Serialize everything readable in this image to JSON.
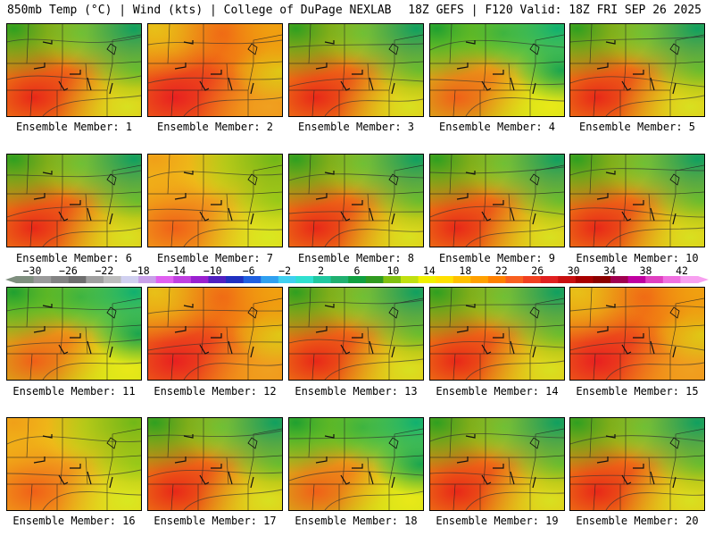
{
  "header": {
    "left": "850mb Temp (°C) | Wind (kts) | College of DuPage NEXLAB",
    "right": "18Z GEFS | F120 Valid: 18Z FRI SEP 26 2025"
  },
  "members": [
    {
      "label": "Ensemble Member: 1",
      "style": "warm"
    },
    {
      "label": "Ensemble Member: 2",
      "style": "hot"
    },
    {
      "label": "Ensemble Member: 3",
      "style": "warm"
    },
    {
      "label": "Ensemble Member: 4",
      "style": "cool"
    },
    {
      "label": "Ensemble Member: 5",
      "style": "warm"
    },
    {
      "label": "Ensemble Member: 6",
      "style": "warm"
    },
    {
      "label": "Ensemble Member: 7",
      "style": "mild"
    },
    {
      "label": "Ensemble Member: 8",
      "style": "warm"
    },
    {
      "label": "Ensemble Member: 9",
      "style": "warm"
    },
    {
      "label": "Ensemble Member: 10",
      "style": "warm"
    },
    {
      "label": "Ensemble Member: 11",
      "style": "cool"
    },
    {
      "label": "Ensemble Member: 12",
      "style": "hot"
    },
    {
      "label": "Ensemble Member: 13",
      "style": "warm"
    },
    {
      "label": "Ensemble Member: 14",
      "style": "warm"
    },
    {
      "label": "Ensemble Member: 15",
      "style": "hot"
    },
    {
      "label": "Ensemble Member: 16",
      "style": "mild"
    },
    {
      "label": "Ensemble Member: 17",
      "style": "warm"
    },
    {
      "label": "Ensemble Member: 18",
      "style": "cool"
    },
    {
      "label": "Ensemble Member: 19",
      "style": "warm"
    },
    {
      "label": "Ensemble Member: 20",
      "style": "warm"
    }
  ],
  "colorbar": {
    "labels": [
      "−30",
      "−26",
      "−22",
      "−18",
      "−14",
      "−10",
      "−6",
      "−2",
      "2",
      "6",
      "10",
      "14",
      "18",
      "22",
      "26",
      "30",
      "34",
      "38",
      "42"
    ],
    "colors": [
      "#7f8f7f",
      "#9a9a9a",
      "#828282",
      "#6e6e6e",
      "#9f9f9f",
      "#bcbcbc",
      "#d0d0f0",
      "#c8a0e8",
      "#e060f0",
      "#c040e0",
      "#9a20d0",
      "#5020c0",
      "#2030c0",
      "#2060e0",
      "#30a0f0",
      "#40d0f0",
      "#30e0d0",
      "#20c8a0",
      "#20b070",
      "#10a040",
      "#309a20",
      "#80c010",
      "#c0e010",
      "#f0f000",
      "#ffe000",
      "#ffc000",
      "#ffa000",
      "#ff8000",
      "#f86020",
      "#f04020",
      "#e02020",
      "#c81010",
      "#a80000",
      "#8c0000",
      "#a00050",
      "#c000a0",
      "#e040c0",
      "#f070e0",
      "#f8a0f0"
    ]
  }
}
